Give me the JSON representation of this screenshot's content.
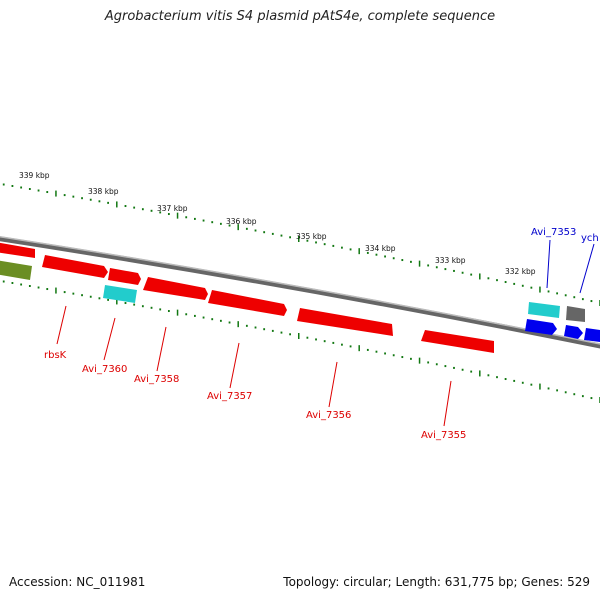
{
  "title": "Agrobacterium vitis S4 plasmid pAtS4e, complete sequence",
  "accession": "Accession: NC_011981",
  "summary": "Topology: circular; Length: 631,775 bp; Genes: 529",
  "ruler_labels": [
    "339 kbp",
    "338 kbp",
    "337 kbp",
    "336 kbp",
    "335 kbp",
    "334 kbp",
    "333 kbp",
    "332 kbp"
  ],
  "gene_labels": [
    {
      "text": "rbsK",
      "color": "#dd0000"
    },
    {
      "text": "Avi_7360",
      "color": "#dd0000"
    },
    {
      "text": "Avi_7358",
      "color": "#dd0000"
    },
    {
      "text": "Avi_7357",
      "color": "#dd0000"
    },
    {
      "text": "Avi_7356",
      "color": "#dd0000"
    },
    {
      "text": "Avi_7355",
      "color": "#dd0000"
    },
    {
      "text": "Avi_7353",
      "color": "#0000cc"
    },
    {
      "text": "ych",
      "color": "#0000cc"
    }
  ],
  "colors": {
    "cds_red": "#ee0000",
    "cds_cyan": "#22cccc",
    "cds_blue": "#0000ee",
    "cds_olive": "#6b8e23",
    "cds_gray": "#666666",
    "backbone": "#888888",
    "ticks": "#117711"
  }
}
